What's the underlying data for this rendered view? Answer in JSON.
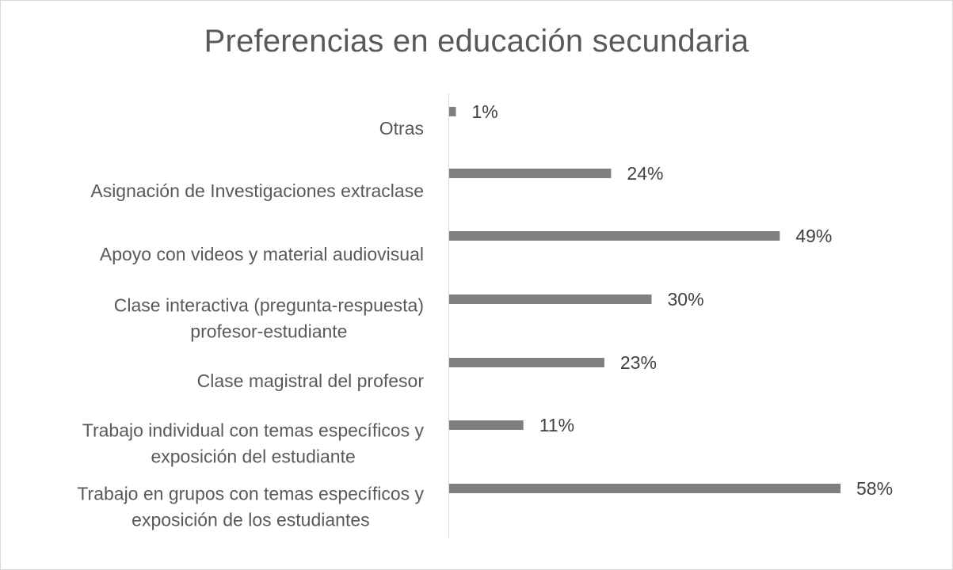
{
  "chart_data": {
    "type": "bar",
    "orientation": "horizontal",
    "title": "Preferencias en educación secundaria",
    "categories": [
      "Otras",
      "Asignación de Investigaciones extraclase",
      "Apoyo con videos y material audiovisual",
      "Clase interactiva (pregunta-respuesta) profesor-estudiante",
      "Clase magistral del profesor",
      "Trabajo individual con temas específicos y exposición del estudiante",
      "Trabajo en grupos con temas específicos y exposición de los estudiantes"
    ],
    "category_lines": [
      [
        "Otras"
      ],
      [
        "Asignación de Investigaciones extraclase"
      ],
      [
        "Apoyo con videos y material audiovisual"
      ],
      [
        "Clase interactiva (pregunta-respuesta)",
        "profesor-estudiante"
      ],
      [
        "Clase magistral del profesor"
      ],
      [
        "Trabajo individual con temas específicos y",
        "exposición del estudiante"
      ],
      [
        "Trabajo en grupos con temas específicos y",
        "exposición de los estudiantes"
      ]
    ],
    "values": [
      1,
      24,
      49,
      30,
      23,
      11,
      58
    ],
    "data_labels": [
      "1%",
      "24%",
      "49%",
      "30%",
      "23%",
      "11%",
      "58%"
    ],
    "unit": "%",
    "xlim": [
      0,
      60
    ],
    "grid": false,
    "legend": "none",
    "colors": {
      "bar": "#7f7f7f",
      "axis": "#d9d9d9",
      "title": "#595959",
      "label": "#595959",
      "data_label": "#404040"
    }
  }
}
